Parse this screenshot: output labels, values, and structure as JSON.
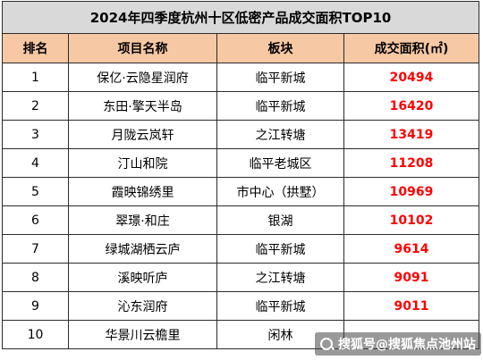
{
  "title": "2024年四季度杭州十区低密产品成交面积TOP10",
  "headers": {
    "rank": "排名",
    "project": "项目名称",
    "block": "板块",
    "area": "成交面积(㎡)"
  },
  "rows": [
    {
      "rank": "1",
      "project": "保亿·云隐星润府",
      "block": "临平新城",
      "area": "20494"
    },
    {
      "rank": "2",
      "project": "东田·擎天半岛",
      "block": "临平新城",
      "area": "16420"
    },
    {
      "rank": "3",
      "project": "月陇云岚轩",
      "block": "之江转塘",
      "area": "13419"
    },
    {
      "rank": "4",
      "project": "汀山和院",
      "block": "临平老城区",
      "area": "11208"
    },
    {
      "rank": "5",
      "project": "霞映锦绣里",
      "block": "市中心（拱墅）",
      "area": "10969"
    },
    {
      "rank": "6",
      "project": "翠璟·和庄",
      "block": "银湖",
      "area": "10102"
    },
    {
      "rank": "7",
      "project": "绿城湖栖云庐",
      "block": "临平新城",
      "area": "9614"
    },
    {
      "rank": "8",
      "project": "溪映听庐",
      "block": "之江转塘",
      "area": "9091"
    },
    {
      "rank": "9",
      "project": "沁东润府",
      "block": "临平新城",
      "area": "9011"
    },
    {
      "rank": "10",
      "project": "华景川云檐里",
      "block": "闲林",
      "area": ""
    }
  ],
  "watermark": "搜狐号@搜狐焦点池州站",
  "colors": {
    "title_bg": "#d9d9d9",
    "header_bg": "#f6c8a4",
    "area_text": "#ff0000"
  }
}
